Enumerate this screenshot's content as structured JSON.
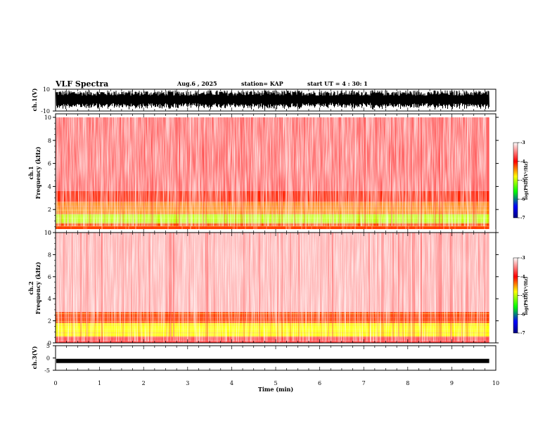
{
  "header": {
    "title": "VLF Spectra",
    "date": "Aug.6 , 2025",
    "station": "station= KAP",
    "start": "start UT = 4 : 30: 1"
  },
  "chart_data": [
    {
      "id": "ch1-waveform",
      "type": "line",
      "ylabel": "ch.1(V)",
      "ylim": [
        -10,
        10
      ],
      "yticks": [
        "10",
        "-10"
      ],
      "description_values": "dense noise waveform filling most of the range"
    },
    {
      "id": "ch1-spectrogram",
      "type": "heatmap",
      "ylabel": "ch.1 Frequency (kHz)",
      "ylim": [
        0,
        10
      ],
      "yticks": [
        "0",
        "2",
        "4",
        "6",
        "8",
        "10"
      ],
      "bands": [
        {
          "from": 0,
          "to": 0.3,
          "level": -3.6
        },
        {
          "from": 0.3,
          "to": 0.8,
          "level": -4.2
        },
        {
          "from": 0.8,
          "to": 1.6,
          "level": -5.0
        },
        {
          "from": 1.6,
          "to": 2.6,
          "level": -4.4
        },
        {
          "from": 2.6,
          "to": 3.6,
          "level": -4.1
        },
        {
          "from": 3.6,
          "to": 10,
          "level": -3.6
        }
      ],
      "colorbar": {
        "label": "log(PSD)(V^2/Hz)",
        "ticks": [
          "-3",
          "-4",
          "-5",
          "-6",
          "-7"
        ],
        "range": [
          -7,
          -3
        ]
      }
    },
    {
      "id": "ch2-spectrogram",
      "type": "heatmap",
      "ylabel": "ch.2 Frequency (kHz)",
      "ylim": [
        0,
        10
      ],
      "yticks": [
        "0",
        "2",
        "4",
        "6",
        "8",
        "10"
      ],
      "bands": [
        {
          "from": 0,
          "to": 0.6,
          "level": -3.7
        },
        {
          "from": 0.6,
          "to": 1.8,
          "level": -4.8
        },
        {
          "from": 1.8,
          "to": 2.8,
          "level": -4.2
        },
        {
          "from": 2.8,
          "to": 10,
          "level": -3.3
        }
      ],
      "colorbar": {
        "label": "log(PSD)(V^2/Hz)",
        "ticks": [
          "-3",
          "-4",
          "-5",
          "-6",
          "-7"
        ],
        "range": [
          -7,
          -3
        ]
      }
    },
    {
      "id": "ch3-waveform",
      "type": "line",
      "ylabel": "ch.3(V)",
      "ylim": [
        -5,
        5
      ],
      "yticks": [
        "5",
        "0",
        "-5"
      ],
      "level": -1.2
    }
  ],
  "xaxis": {
    "label": "Time (min)",
    "range": [
      0,
      10
    ],
    "ticks": [
      "0",
      "1",
      "2",
      "3",
      "4",
      "5",
      "6",
      "7",
      "8",
      "9",
      "10"
    ],
    "data_end": 9.85
  },
  "colors": {
    "low": "#00008b",
    "mid_low": "#00ff00",
    "mid": "#ffff00",
    "high": "#ff0000",
    "top": "#ffffff"
  }
}
